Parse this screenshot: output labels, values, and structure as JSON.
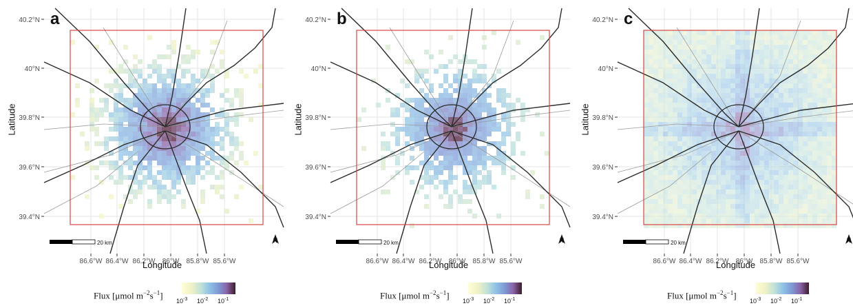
{
  "panels": [
    {
      "letter": "a",
      "ylabel": "Latitude",
      "xlabel": "Longitude",
      "y_ticks": [
        "40.2°N",
        "40°N",
        "39.8°N",
        "39.6°N",
        "39.4°N"
      ],
      "x_ticks": [
        "86.6°W",
        "86.4°W",
        "86.2°W",
        "86°W",
        "85.8°W",
        "85.6°W"
      ],
      "scale_label": "20 km",
      "legend": {
        "title_main": "Flux [μmol m",
        "sup1": "−2",
        "mid": "s",
        "sup2": "−1",
        "end": "]",
        "ticks": [
          {
            "base": "10",
            "exp": "-3"
          },
          {
            "base": "10",
            "exp": "-2"
          },
          {
            "base": "10",
            "exp": "-1"
          }
        ]
      }
    },
    {
      "letter": "b",
      "ylabel": "Latitude",
      "xlabel": "Longitude",
      "y_ticks": [
        "40.2°N",
        "40°N",
        "39.8°N",
        "39.6°N",
        "39.4°N"
      ],
      "x_ticks": [
        "86.6°W",
        "86.4°W",
        "86.2°W",
        "86°W",
        "85.8°W",
        "85.6°W"
      ],
      "scale_label": "20 km",
      "legend": {
        "title_main": "Flux [μmol m",
        "sup1": "−2",
        "mid": "s",
        "sup2": "−1",
        "end": "]",
        "ticks": [
          {
            "base": "10",
            "exp": "-3"
          },
          {
            "base": "10",
            "exp": "-2"
          },
          {
            "base": "10",
            "exp": "-1"
          }
        ]
      }
    },
    {
      "letter": "c",
      "ylabel": "Latitude",
      "xlabel": "Longitude",
      "y_ticks": [
        "40.2°N",
        "40°N",
        "39.8°N",
        "39.6°N",
        "39.4°N"
      ],
      "x_ticks": [
        "86.6°W",
        "86.4°W",
        "86.2°W",
        "86°W",
        "85.8°W",
        "85.6°W"
      ],
      "scale_label": "20 km",
      "legend": {
        "title_main": "Flux [μmol m",
        "sup1": "−2",
        "mid": "s",
        "sup2": "−1",
        "end": "]",
        "ticks": [
          {
            "base": "10",
            "exp": "-3"
          },
          {
            "base": "10",
            "exp": "-2"
          },
          {
            "base": "10",
            "exp": "-1"
          }
        ]
      }
    }
  ],
  "colors": {
    "domain_box": "#d64545",
    "roads": "#2b2b2b",
    "minor_roads": "#9a9a9a",
    "grid": "#e6e6e6",
    "flux_low": "#f4f3c2",
    "flux_mid": "#8fc1e6",
    "flux_high": "#6a2c4a"
  },
  "north_arrow": "north-arrow-icon"
}
